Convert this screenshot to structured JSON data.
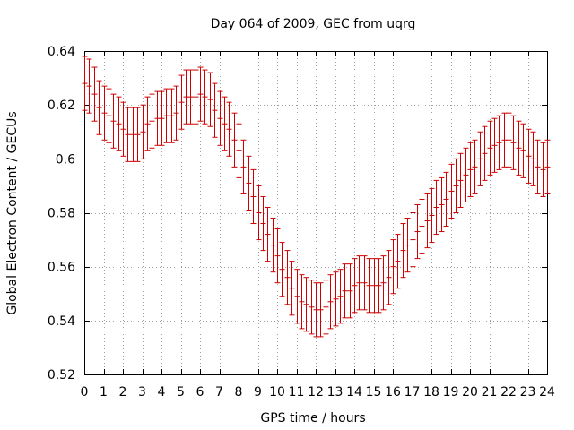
{
  "chart_data": {
    "type": "scatter",
    "title": "Day 064 of 2009, GEC from uqrg",
    "xlabel": "GPS time / hours",
    "ylabel": "Global Electron Content / GECUs",
    "xlim": [
      0,
      24
    ],
    "ylim": [
      0.52,
      0.64
    ],
    "x_ticks": [
      "0",
      "1",
      "2",
      "3",
      "4",
      "5",
      "6",
      "7",
      "8",
      "9",
      "10",
      "11",
      "12",
      "13",
      "14",
      "15",
      "16",
      "17",
      "18",
      "19",
      "20",
      "21",
      "22",
      "23",
      "24"
    ],
    "y_ticks": [
      "0.52",
      "0.54",
      "0.56",
      "0.58",
      "0.6",
      "0.62",
      "0.64"
    ],
    "grid": true,
    "error_bar_color": "#cc0000",
    "series": [
      {
        "style": "error-bars",
        "x": [
          0,
          0.25,
          0.5,
          0.75,
          1,
          1.25,
          1.5,
          1.75,
          2,
          2.25,
          2.5,
          2.75,
          3,
          3.25,
          3.5,
          3.75,
          4,
          4.25,
          4.5,
          4.75,
          5,
          5.25,
          5.5,
          5.75,
          6,
          6.25,
          6.5,
          6.75,
          7,
          7.25,
          7.5,
          7.75,
          8,
          8.25,
          8.5,
          8.75,
          9,
          9.25,
          9.5,
          9.75,
          10,
          10.25,
          10.5,
          10.75,
          11,
          11.25,
          11.5,
          11.75,
          12,
          12.25,
          12.5,
          12.75,
          13,
          13.25,
          13.5,
          13.75,
          14,
          14.25,
          14.5,
          14.75,
          15,
          15.25,
          15.5,
          15.75,
          16,
          16.25,
          16.5,
          16.75,
          17,
          17.25,
          17.5,
          17.75,
          18,
          18.25,
          18.5,
          18.75,
          19,
          19.25,
          19.5,
          19.75,
          20,
          20.25,
          20.5,
          20.75,
          21,
          21.25,
          21.5,
          21.75,
          22,
          22.25,
          22.5,
          22.75,
          23,
          23.25,
          23.5,
          23.75,
          24
        ],
        "y": [
          0.628,
          0.627,
          0.624,
          0.619,
          0.617,
          0.616,
          0.614,
          0.613,
          0.611,
          0.609,
          0.609,
          0.609,
          0.61,
          0.613,
          0.614,
          0.615,
          0.615,
          0.616,
          0.616,
          0.617,
          0.621,
          0.623,
          0.623,
          0.623,
          0.624,
          0.623,
          0.622,
          0.618,
          0.615,
          0.613,
          0.611,
          0.607,
          0.603,
          0.597,
          0.591,
          0.586,
          0.58,
          0.576,
          0.572,
          0.568,
          0.564,
          0.559,
          0.556,
          0.552,
          0.549,
          0.547,
          0.546,
          0.545,
          0.544,
          0.544,
          0.545,
          0.547,
          0.548,
          0.549,
          0.551,
          0.551,
          0.553,
          0.554,
          0.554,
          0.553,
          0.553,
          0.553,
          0.554,
          0.556,
          0.56,
          0.562,
          0.566,
          0.568,
          0.57,
          0.573,
          0.575,
          0.577,
          0.579,
          0.582,
          0.583,
          0.585,
          0.588,
          0.59,
          0.592,
          0.594,
          0.596,
          0.597,
          0.6,
          0.602,
          0.604,
          0.605,
          0.606,
          0.607,
          0.607,
          0.606,
          0.604,
          0.603,
          0.601,
          0.6,
          0.597,
          0.596,
          0.597
        ],
        "error": [
          0.01,
          0.01,
          0.01,
          0.01,
          0.01,
          0.01,
          0.01,
          0.01,
          0.01,
          0.01,
          0.01,
          0.01,
          0.01,
          0.01,
          0.01,
          0.01,
          0.01,
          0.01,
          0.01,
          0.01,
          0.01,
          0.01,
          0.01,
          0.01,
          0.01,
          0.01,
          0.01,
          0.01,
          0.01,
          0.01,
          0.01,
          0.01,
          0.01,
          0.01,
          0.01,
          0.01,
          0.01,
          0.01,
          0.01,
          0.01,
          0.01,
          0.01,
          0.01,
          0.01,
          0.01,
          0.01,
          0.01,
          0.01,
          0.01,
          0.01,
          0.01,
          0.01,
          0.01,
          0.01,
          0.01,
          0.01,
          0.01,
          0.01,
          0.01,
          0.01,
          0.01,
          0.01,
          0.01,
          0.01,
          0.01,
          0.01,
          0.01,
          0.01,
          0.01,
          0.01,
          0.01,
          0.01,
          0.01,
          0.01,
          0.01,
          0.01,
          0.01,
          0.01,
          0.01,
          0.01,
          0.01,
          0.01,
          0.01,
          0.01,
          0.01,
          0.01,
          0.01,
          0.01,
          0.01,
          0.01,
          0.01,
          0.01,
          0.01,
          0.01,
          0.01,
          0.01,
          0.01
        ]
      }
    ]
  }
}
